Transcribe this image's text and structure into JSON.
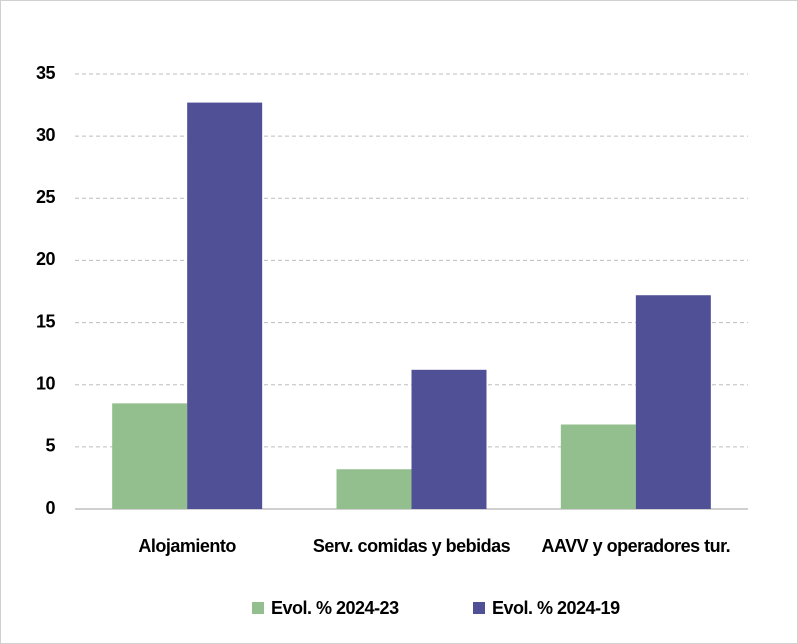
{
  "chart_data": {
    "type": "bar",
    "categories": [
      "Alojamiento",
      "Serv. comidas y bebidas",
      "AAVV y operadores tur."
    ],
    "series": [
      {
        "name": "Evol. % 2024-23",
        "color": "#93bf8e",
        "values": [
          8.5,
          3.2,
          6.8
        ]
      },
      {
        "name": "Evol. % 2024-19",
        "color": "#4f5096",
        "values": [
          32.7,
          11.2,
          17.2
        ]
      }
    ],
    "ylim": [
      0,
      35
    ],
    "yticks": [
      0,
      5,
      10,
      15,
      20,
      25,
      30,
      35
    ],
    "grid": true,
    "legend": "bottom"
  }
}
